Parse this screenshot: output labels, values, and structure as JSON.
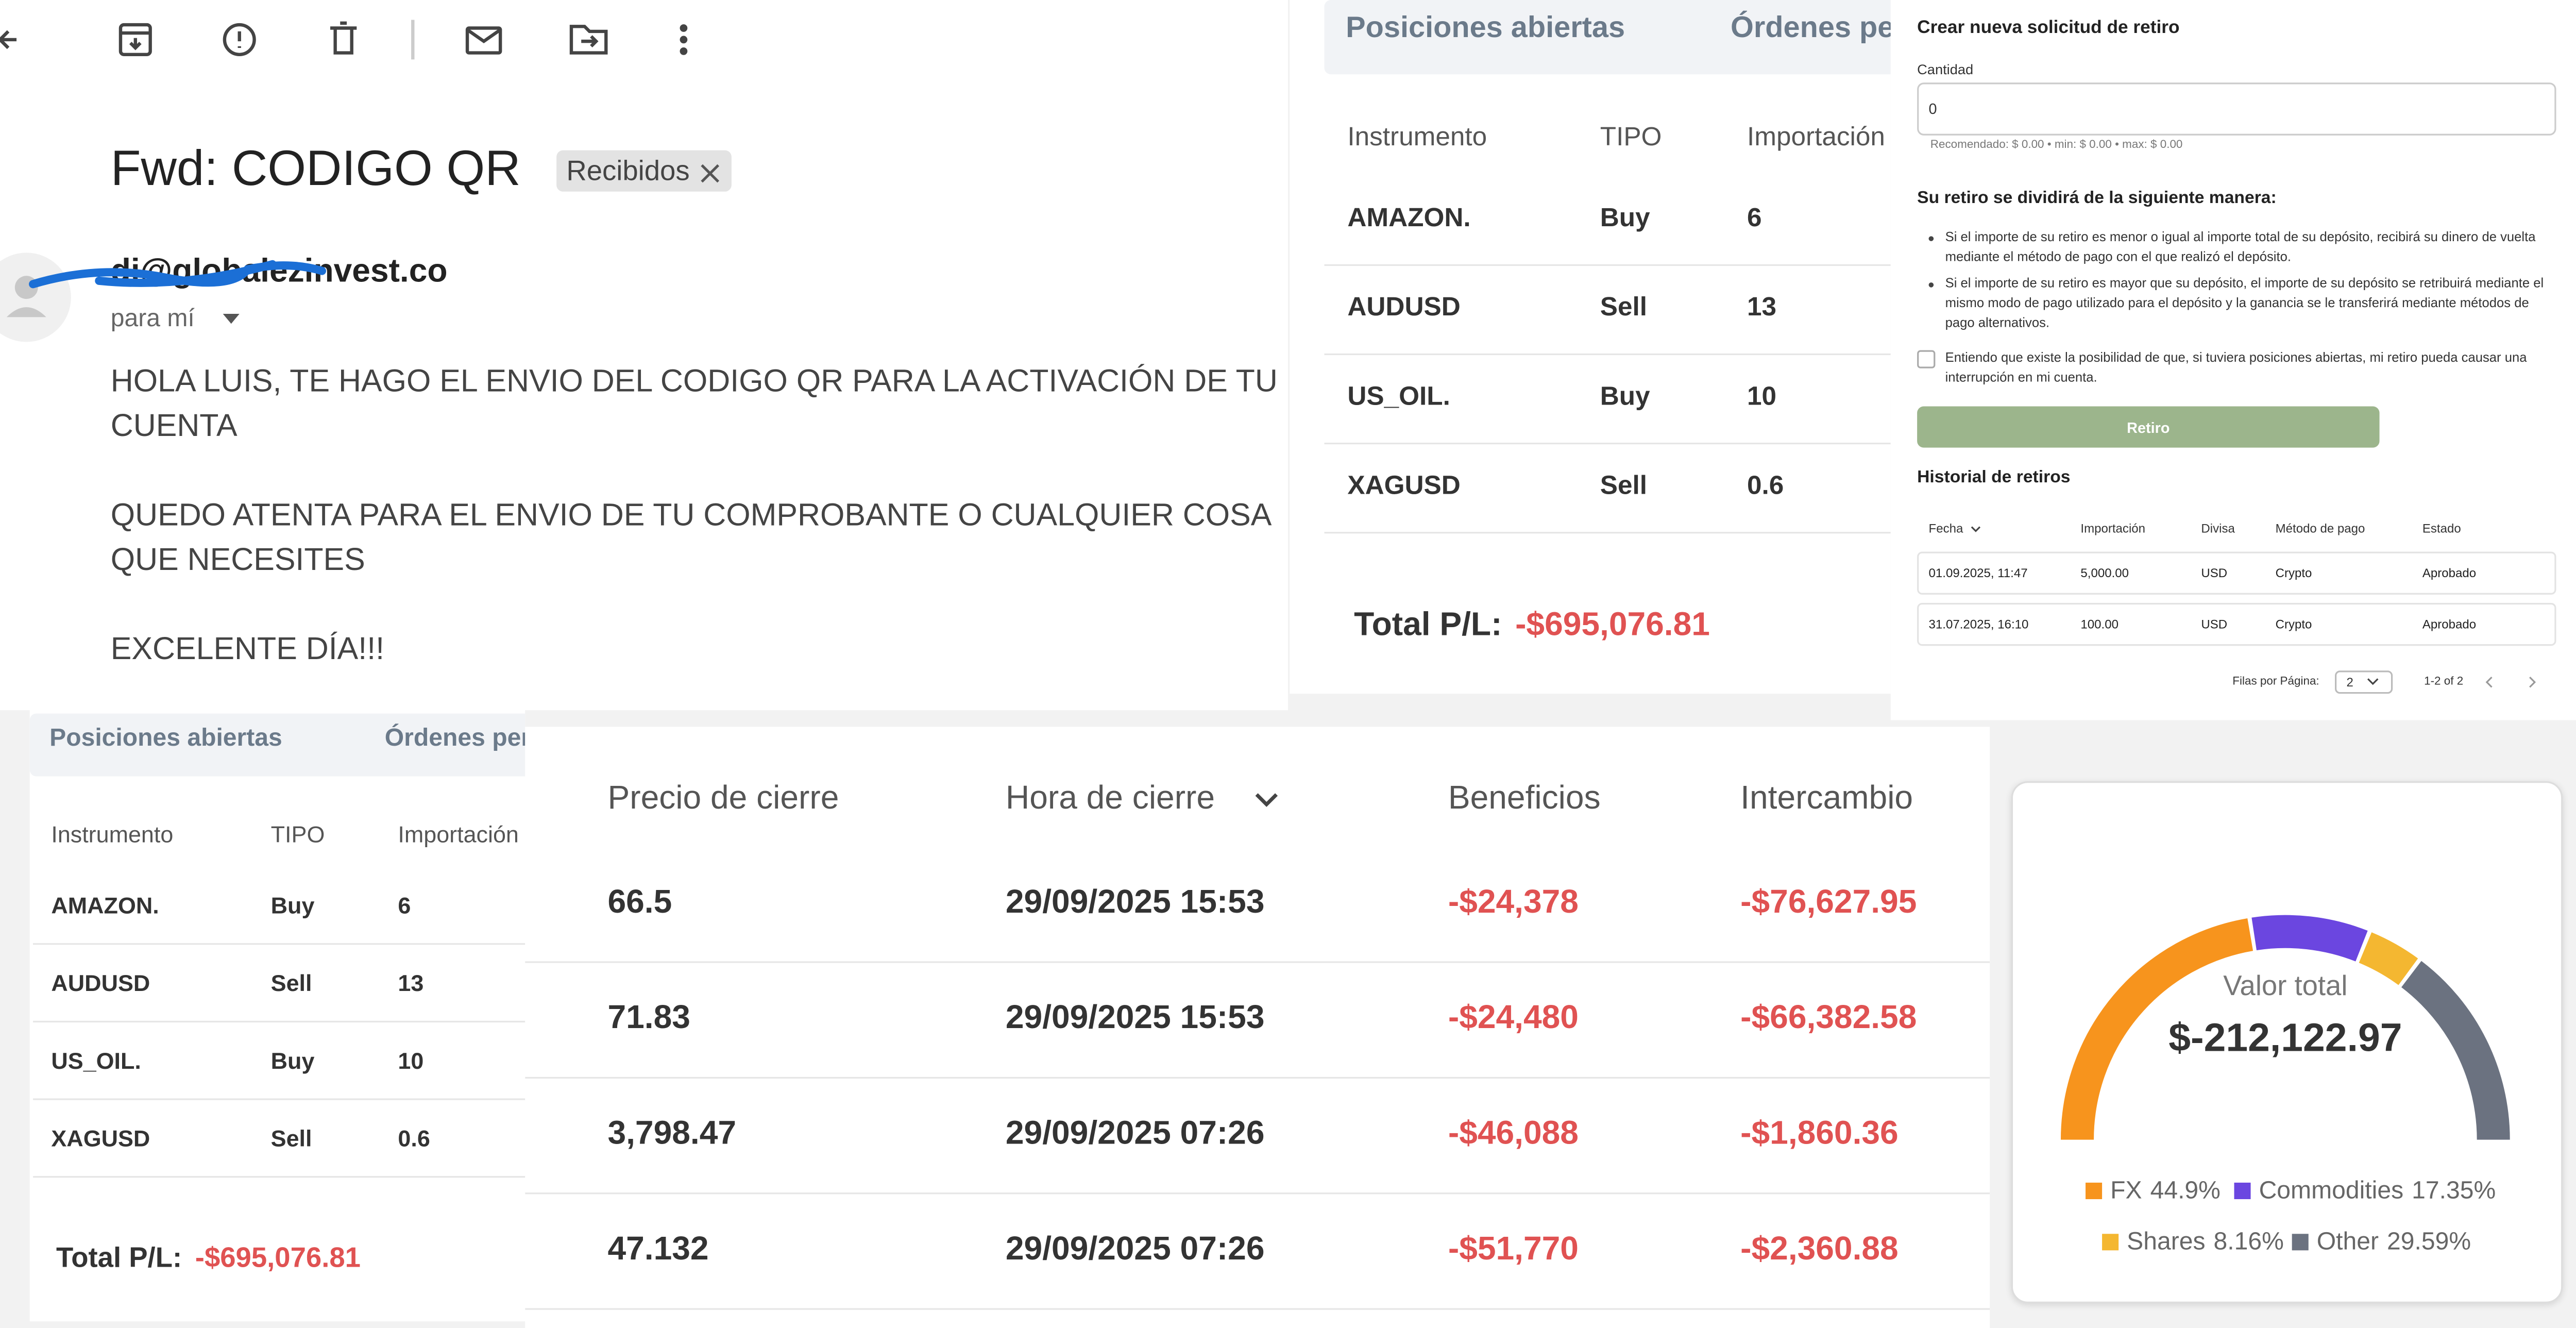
{
  "email": {
    "subject": "Fwd: CODIGO QR",
    "label": "Recibidos",
    "sender": "di@globalezinvest.co",
    "recipient": "para mí",
    "body": [
      "HOLA LUIS, TE HAGO EL ENVIO DEL CODIGO QR PARA LA ACTIVACIÓN DE TU CUENTA",
      "QUEDO ATENTA PARA EL ENVIO DE TU COMPROBANTE O CUALQUIER COSA QUE NECESITES",
      "EXCELENTE DÍA!!!"
    ]
  },
  "positions": {
    "tabs": [
      "Posiciones abiertas",
      "Órdenes pendientes"
    ],
    "headers": [
      "Instrumento",
      "TIPO",
      "Importación"
    ],
    "rows": [
      [
        "AMAZON.",
        "Buy",
        "6"
      ],
      [
        "AUDUSD",
        "Sell",
        "13"
      ],
      [
        "US_OIL.",
        "Buy",
        "10"
      ],
      [
        "XAGUSD",
        "Sell",
        "0.6"
      ]
    ],
    "total_label": "Total P/L:",
    "total": "-$695,076.81"
  },
  "withdrawal": {
    "title": "Crear nueva solicitud de retiro",
    "amount_label": "Cantidad",
    "amount": "0",
    "hint": "Recomendado: $ 0.00 • min: $ 0.00 • max: $ 0.00",
    "split_title": "Su retiro se dividirá de la siguiente manera:",
    "bullets": [
      "Si el importe de su retiro es menor o igual al importe total de su depósito, recibirá su dinero de vuelta mediante el método de pago con el que realizó el depósito.",
      "Si el importe de su retiro es mayor que su depósito, el importe de su depósito se retribuirá mediante el mismo modo de pago utilizado para el depósito y la ganancia se le transferirá mediante métodos de pago alternativos."
    ],
    "checkbox": "Entiendo que existe la posibilidad de que, si tuviera posiciones abiertas, mi retiro pueda causar una interrupción en mi cuenta.",
    "button": "Retiro",
    "history_title": "Historial de retiros",
    "history_headers": [
      "Fecha",
      "Importación",
      "Divisa",
      "Método de pago",
      "Estado"
    ],
    "history_rows": [
      [
        "01.09.2025, 11:47",
        "5,000.00",
        "USD",
        "Crypto",
        "Aprobado"
      ],
      [
        "31.07.2025, 16:10",
        "100.00",
        "USD",
        "Crypto",
        "Aprobado"
      ]
    ],
    "rows_per_page": "Filas por Página:",
    "page_size": "2",
    "range": "1-2 of 2"
  },
  "closed": {
    "headers": [
      "Precio de cierre",
      "Hora de cierre",
      "Beneficios",
      "Intercambio"
    ],
    "rows": [
      [
        "66.5",
        "29/09/2025 15:53",
        "-$24,378",
        "-$76,627.95"
      ],
      [
        "71.83",
        "29/09/2025 15:53",
        "-$24,480",
        "-$66,382.58"
      ],
      [
        "3,798.47",
        "29/09/2025 07:26",
        "-$46,088",
        "-$1,860.36"
      ],
      [
        "47.132",
        "29/09/2025 07:26",
        "-$51,770",
        "-$2,360.88"
      ]
    ]
  },
  "chart_data": {
    "type": "pie",
    "title": "Valor total",
    "total": "$-212,122.97",
    "categories": [
      "FX",
      "Commodities",
      "Shares",
      "Other"
    ],
    "values": [
      44.9,
      17.35,
      8.16,
      29.59
    ],
    "value_labels": [
      "44.9%",
      "17.35%",
      "8.16%",
      "29.59%"
    ],
    "colors": [
      "#f7941d",
      "#6b46e0",
      "#f4b731",
      "#6b7280"
    ]
  }
}
